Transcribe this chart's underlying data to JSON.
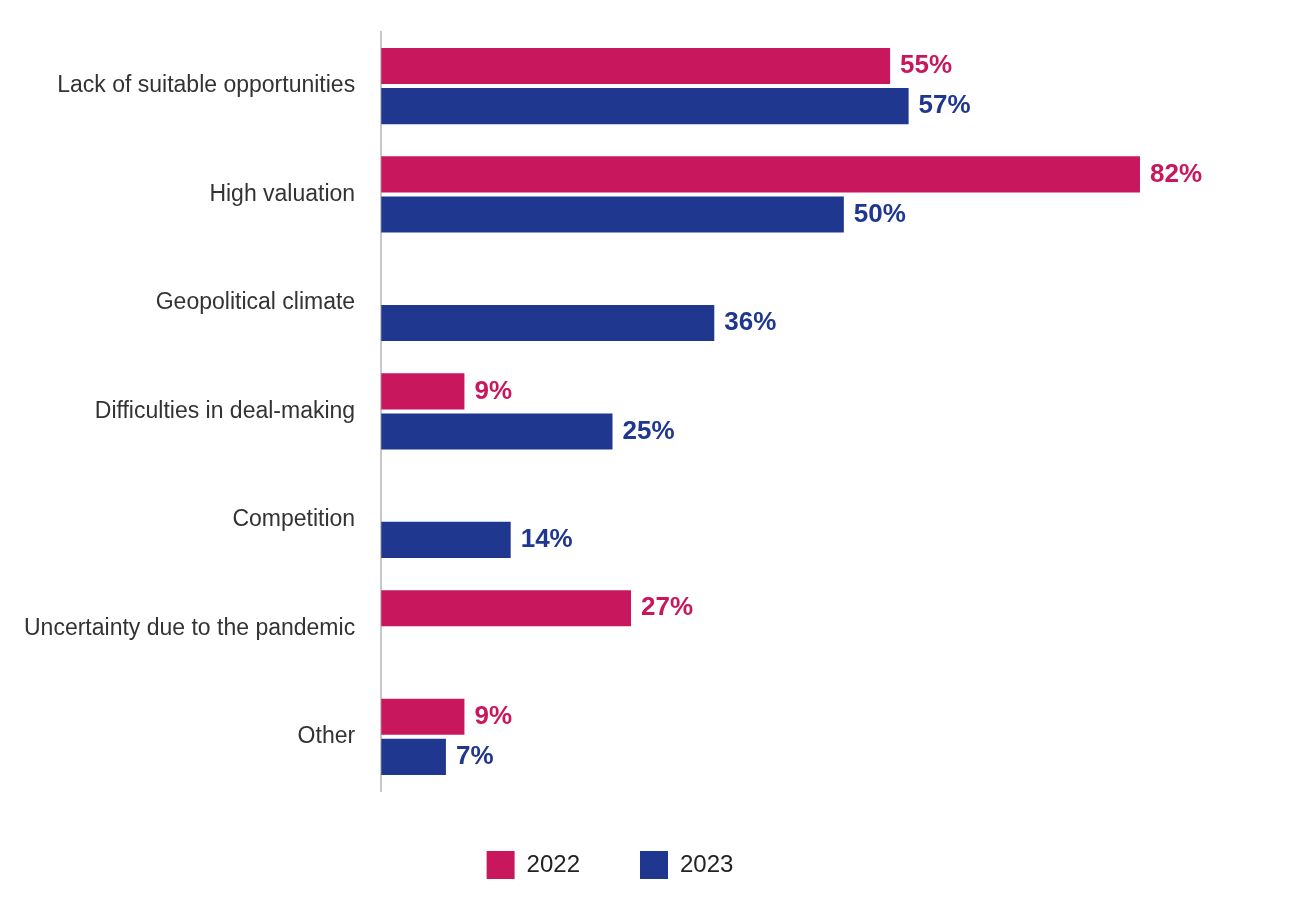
{
  "chart_data": {
    "type": "bar",
    "orientation": "horizontal",
    "categories": [
      "Lack of suitable opportunities",
      "High valuation",
      "Geopolitical climate",
      "Difficulties in deal-making",
      "Competition",
      "Uncertainty due to the pandemic",
      "Other"
    ],
    "series": [
      {
        "name": "2022",
        "color": "#c8175d",
        "values": [
          55,
          82,
          null,
          9,
          null,
          27,
          9
        ],
        "value_labels": [
          "55%",
          "82%",
          null,
          "9%",
          null,
          "27%",
          "9%"
        ]
      },
      {
        "name": "2023",
        "color": "#1f378f",
        "values": [
          57,
          50,
          36,
          25,
          14,
          null,
          7
        ],
        "value_labels": [
          "57%",
          "50%",
          "36%",
          "25%",
          "14%",
          null,
          "7%"
        ]
      }
    ],
    "tick_labels": "y",
    "legend": "bottom"
  }
}
